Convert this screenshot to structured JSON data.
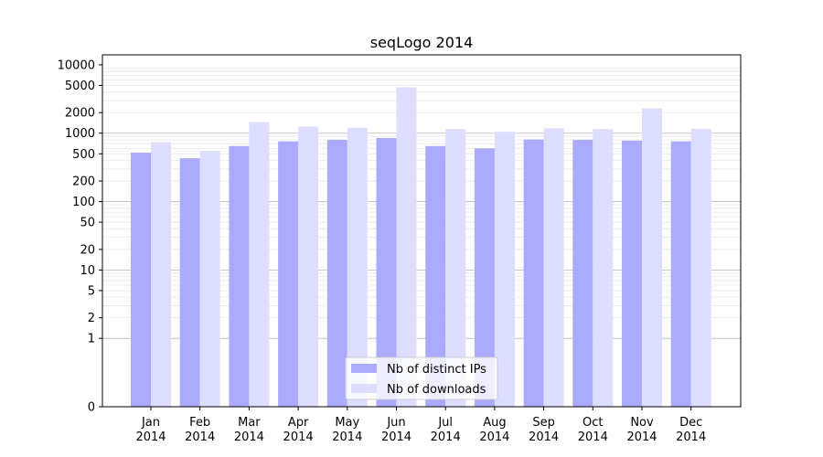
{
  "chart_data": {
    "type": "bar",
    "title": "seqLogo 2014",
    "xlabel": "",
    "ylabel": "",
    "yscale": "log",
    "ylim": [
      0,
      14000
    ],
    "y_ticks": [
      0,
      1,
      2,
      5,
      10,
      20,
      50,
      100,
      200,
      500,
      1000,
      2000,
      5000,
      10000
    ],
    "categories": [
      "Jan 2014",
      "Feb 2014",
      "Mar 2014",
      "Apr 2014",
      "May 2014",
      "Jun 2014",
      "Jul 2014",
      "Aug 2014",
      "Sep 2014",
      "Oct 2014",
      "Nov 2014",
      "Dec 2014"
    ],
    "category_lines": [
      [
        "Jan",
        "2014"
      ],
      [
        "Feb",
        "2014"
      ],
      [
        "Mar",
        "2014"
      ],
      [
        "Apr",
        "2014"
      ],
      [
        "May",
        "2014"
      ],
      [
        "Jun",
        "2014"
      ],
      [
        "Jul",
        "2014"
      ],
      [
        "Aug",
        "2014"
      ],
      [
        "Sep",
        "2014"
      ],
      [
        "Oct",
        "2014"
      ],
      [
        "Nov",
        "2014"
      ],
      [
        "Dec",
        "2014"
      ]
    ],
    "series": [
      {
        "name": "Nb of distinct IPs",
        "color": "#aaaaff",
        "values": [
          520,
          430,
          650,
          760,
          800,
          850,
          650,
          600,
          810,
          800,
          780,
          760
        ]
      },
      {
        "name": "Nb of downloads",
        "color": "#ddddff",
        "values": [
          740,
          550,
          1450,
          1250,
          1200,
          4700,
          1150,
          1050,
          1180,
          1150,
          2300,
          1160
        ]
      }
    ],
    "grid": true,
    "legend_position": "bottom-center"
  }
}
